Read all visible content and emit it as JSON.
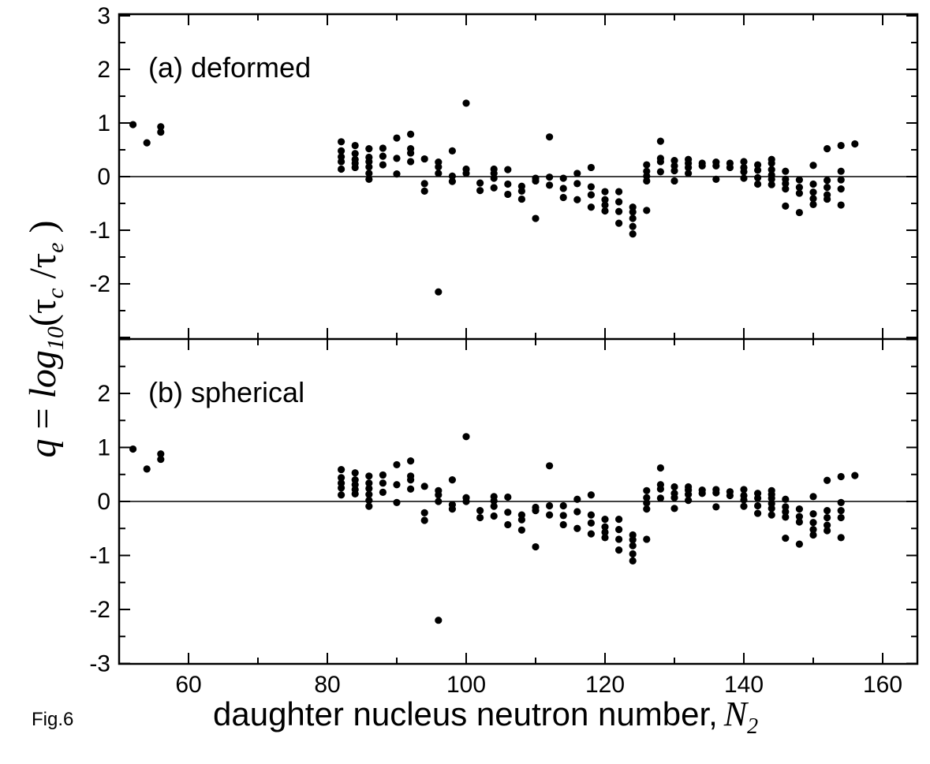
{
  "figure_label": "Fig.6",
  "chart_data": {
    "type": "scatter",
    "xlabel": "daughter nucleus neutron number,",
    "xlabel_symbol": "N",
    "xlabel_subscript": "2",
    "ylabel": {
      "lhs": "q",
      "eq": " = ",
      "log": "log",
      "log_sub": "10",
      "open": "(",
      "tau": "τ",
      "sub_c": "c",
      "slash": " /",
      "sub_e": "e",
      "close": " )"
    },
    "xlim": [
      50,
      165
    ],
    "x_ticks": [
      60,
      80,
      100,
      120,
      140,
      160
    ],
    "zero_line": true,
    "panels": [
      {
        "label": "(a) deformed",
        "ylim": [
          -3,
          3
        ],
        "y_tick_labels": [
          3,
          2,
          1,
          0,
          -1,
          -2
        ],
        "points": [
          [
            52,
            0.97
          ],
          [
            54,
            0.63
          ],
          [
            56,
            0.93
          ],
          [
            56,
            0.83
          ],
          [
            82,
            0.65
          ],
          [
            82,
            0.48
          ],
          [
            82,
            0.37
          ],
          [
            82,
            0.28
          ],
          [
            82,
            0.14
          ],
          [
            84,
            0.58
          ],
          [
            84,
            0.43
          ],
          [
            84,
            0.32
          ],
          [
            84,
            0.25
          ],
          [
            84,
            0.17
          ],
          [
            86,
            0.52
          ],
          [
            86,
            0.36
          ],
          [
            86,
            0.28
          ],
          [
            86,
            0.18
          ],
          [
            86,
            0.06
          ],
          [
            86,
            -0.05
          ],
          [
            88,
            0.53
          ],
          [
            88,
            0.38
          ],
          [
            88,
            0.22
          ],
          [
            90,
            0.72
          ],
          [
            90,
            0.34
          ],
          [
            90,
            0.05
          ],
          [
            92,
            0.79
          ],
          [
            92,
            0.52
          ],
          [
            92,
            0.44
          ],
          [
            92,
            0.28
          ],
          [
            94,
            0.33
          ],
          [
            94,
            -0.13
          ],
          [
            94,
            -0.27
          ],
          [
            96,
            0.27
          ],
          [
            96,
            0.18
          ],
          [
            96,
            0.06
          ],
          [
            96,
            -2.15
          ],
          [
            98,
            0.48
          ],
          [
            98,
            0.01
          ],
          [
            98,
            -0.09
          ],
          [
            100,
            1.37
          ],
          [
            100,
            0.14
          ],
          [
            100,
            0.06
          ],
          [
            102,
            -0.12
          ],
          [
            102,
            -0.26
          ],
          [
            104,
            0.14
          ],
          [
            104,
            0.06
          ],
          [
            104,
            -0.03
          ],
          [
            104,
            -0.21
          ],
          [
            106,
            0.13
          ],
          [
            106,
            -0.14
          ],
          [
            106,
            -0.33
          ],
          [
            108,
            -0.18
          ],
          [
            108,
            -0.27
          ],
          [
            108,
            -0.42
          ],
          [
            110,
            -0.03
          ],
          [
            110,
            -0.08
          ],
          [
            110,
            -0.78
          ],
          [
            112,
            0.74
          ],
          [
            112,
            -0.01
          ],
          [
            112,
            -0.16
          ],
          [
            114,
            -0.03
          ],
          [
            114,
            -0.22
          ],
          [
            114,
            -0.39
          ],
          [
            116,
            0.06
          ],
          [
            116,
            -0.13
          ],
          [
            116,
            -0.43
          ],
          [
            118,
            0.17
          ],
          [
            118,
            -0.19
          ],
          [
            118,
            -0.34
          ],
          [
            118,
            -0.57
          ],
          [
            120,
            -0.28
          ],
          [
            120,
            -0.43
          ],
          [
            120,
            -0.53
          ],
          [
            120,
            -0.64
          ],
          [
            122,
            -0.28
          ],
          [
            122,
            -0.47
          ],
          [
            122,
            -0.65
          ],
          [
            122,
            -0.87
          ],
          [
            124,
            -0.57
          ],
          [
            124,
            -0.66
          ],
          [
            124,
            -0.78
          ],
          [
            124,
            -0.93
          ],
          [
            124,
            -1.07
          ],
          [
            126,
            0.22
          ],
          [
            126,
            0.1
          ],
          [
            126,
            0.01
          ],
          [
            126,
            -0.08
          ],
          [
            126,
            -0.63
          ],
          [
            128,
            0.66
          ],
          [
            128,
            0.34
          ],
          [
            128,
            0.28
          ],
          [
            128,
            0.09
          ],
          [
            130,
            0.3
          ],
          [
            130,
            0.2
          ],
          [
            130,
            0.11
          ],
          [
            130,
            -0.08
          ],
          [
            132,
            0.32
          ],
          [
            132,
            0.25
          ],
          [
            132,
            0.17
          ],
          [
            132,
            0.06
          ],
          [
            134,
            0.25
          ],
          [
            134,
            0.2
          ],
          [
            136,
            0.27
          ],
          [
            136,
            0.2
          ],
          [
            136,
            -0.05
          ],
          [
            138,
            0.25
          ],
          [
            138,
            0.17
          ],
          [
            140,
            0.28
          ],
          [
            140,
            0.17
          ],
          [
            140,
            0.09
          ],
          [
            140,
            -0.03
          ],
          [
            142,
            0.22
          ],
          [
            142,
            0.12
          ],
          [
            142,
            -0.02
          ],
          [
            142,
            -0.14
          ],
          [
            144,
            0.32
          ],
          [
            144,
            0.25
          ],
          [
            144,
            0.13
          ],
          [
            144,
            0.03
          ],
          [
            144,
            -0.05
          ],
          [
            144,
            -0.15
          ],
          [
            146,
            0.1
          ],
          [
            146,
            -0.05
          ],
          [
            146,
            -0.13
          ],
          [
            146,
            -0.23
          ],
          [
            146,
            -0.55
          ],
          [
            148,
            -0.06
          ],
          [
            148,
            -0.2
          ],
          [
            148,
            -0.31
          ],
          [
            148,
            -0.67
          ],
          [
            150,
            0.21
          ],
          [
            150,
            -0.14
          ],
          [
            150,
            -0.29
          ],
          [
            150,
            -0.41
          ],
          [
            150,
            -0.52
          ],
          [
            152,
            0.52
          ],
          [
            152,
            -0.07
          ],
          [
            152,
            -0.2
          ],
          [
            152,
            -0.34
          ],
          [
            152,
            -0.42
          ],
          [
            154,
            0.58
          ],
          [
            154,
            0.1
          ],
          [
            154,
            -0.06
          ],
          [
            154,
            -0.23
          ],
          [
            154,
            -0.53
          ],
          [
            156,
            0.61
          ]
        ]
      },
      {
        "label": "(b) spherical",
        "ylim": [
          -3,
          3
        ],
        "y_tick_labels": [
          2,
          1,
          0,
          -1,
          -2,
          -3
        ],
        "points": [
          [
            52,
            0.97
          ],
          [
            54,
            0.6
          ],
          [
            56,
            0.88
          ],
          [
            56,
            0.78
          ],
          [
            82,
            0.59
          ],
          [
            82,
            0.44
          ],
          [
            82,
            0.34
          ],
          [
            82,
            0.25
          ],
          [
            82,
            0.12
          ],
          [
            84,
            0.53
          ],
          [
            84,
            0.4
          ],
          [
            84,
            0.31
          ],
          [
            84,
            0.22
          ],
          [
            84,
            0.14
          ],
          [
            86,
            0.47
          ],
          [
            86,
            0.34
          ],
          [
            86,
            0.24
          ],
          [
            86,
            0.13
          ],
          [
            86,
            0.02
          ],
          [
            86,
            -0.09
          ],
          [
            88,
            0.49
          ],
          [
            88,
            0.34
          ],
          [
            88,
            0.17
          ],
          [
            90,
            0.68
          ],
          [
            90,
            0.31
          ],
          [
            90,
            -0.02
          ],
          [
            92,
            0.75
          ],
          [
            92,
            0.47
          ],
          [
            92,
            0.4
          ],
          [
            92,
            0.23
          ],
          [
            94,
            0.28
          ],
          [
            94,
            -0.21
          ],
          [
            94,
            -0.35
          ],
          [
            96,
            0.2
          ],
          [
            96,
            0.12
          ],
          [
            96,
            0.0
          ],
          [
            96,
            -2.2
          ],
          [
            98,
            0.4
          ],
          [
            98,
            -0.06
          ],
          [
            98,
            -0.14
          ],
          [
            100,
            1.2
          ],
          [
            100,
            0.07
          ],
          [
            100,
            0.0
          ],
          [
            102,
            -0.17
          ],
          [
            102,
            -0.3
          ],
          [
            104,
            0.09
          ],
          [
            104,
            0.01
          ],
          [
            104,
            -0.09
          ],
          [
            104,
            -0.27
          ],
          [
            106,
            0.08
          ],
          [
            106,
            -0.2
          ],
          [
            106,
            -0.43
          ],
          [
            108,
            -0.25
          ],
          [
            108,
            -0.34
          ],
          [
            108,
            -0.53
          ],
          [
            110,
            -0.11
          ],
          [
            110,
            -0.17
          ],
          [
            110,
            -0.84
          ],
          [
            112,
            0.66
          ],
          [
            112,
            -0.08
          ],
          [
            112,
            -0.25
          ],
          [
            114,
            -0.08
          ],
          [
            114,
            -0.26
          ],
          [
            114,
            -0.43
          ],
          [
            116,
            0.04
          ],
          [
            116,
            -0.19
          ],
          [
            116,
            -0.5
          ],
          [
            118,
            0.12
          ],
          [
            118,
            -0.25
          ],
          [
            118,
            -0.4
          ],
          [
            118,
            -0.6
          ],
          [
            120,
            -0.33
          ],
          [
            120,
            -0.47
          ],
          [
            120,
            -0.57
          ],
          [
            120,
            -0.67
          ],
          [
            122,
            -0.33
          ],
          [
            122,
            -0.52
          ],
          [
            122,
            -0.7
          ],
          [
            122,
            -0.9
          ],
          [
            124,
            -0.62
          ],
          [
            124,
            -0.71
          ],
          [
            124,
            -0.82
          ],
          [
            124,
            -0.97
          ],
          [
            124,
            -1.1
          ],
          [
            126,
            0.2
          ],
          [
            126,
            0.07
          ],
          [
            126,
            -0.03
          ],
          [
            126,
            -0.14
          ],
          [
            126,
            -0.7
          ],
          [
            128,
            0.62
          ],
          [
            128,
            0.31
          ],
          [
            128,
            0.23
          ],
          [
            128,
            0.06
          ],
          [
            130,
            0.27
          ],
          [
            130,
            0.15
          ],
          [
            130,
            0.07
          ],
          [
            130,
            -0.13
          ],
          [
            132,
            0.27
          ],
          [
            132,
            0.21
          ],
          [
            132,
            0.13
          ],
          [
            132,
            0.02
          ],
          [
            134,
            0.21
          ],
          [
            134,
            0.15
          ],
          [
            136,
            0.22
          ],
          [
            136,
            0.16
          ],
          [
            136,
            -0.1
          ],
          [
            138,
            0.18
          ],
          [
            138,
            0.11
          ],
          [
            140,
            0.22
          ],
          [
            140,
            0.11
          ],
          [
            140,
            0.03
          ],
          [
            140,
            -0.09
          ],
          [
            142,
            0.15
          ],
          [
            142,
            0.06
          ],
          [
            142,
            -0.08
          ],
          [
            142,
            -0.22
          ],
          [
            144,
            0.2
          ],
          [
            144,
            0.13
          ],
          [
            144,
            0.06
          ],
          [
            144,
            -0.04
          ],
          [
            144,
            -0.13
          ],
          [
            144,
            -0.25
          ],
          [
            146,
            0.04
          ],
          [
            146,
            -0.1
          ],
          [
            146,
            -0.19
          ],
          [
            146,
            -0.29
          ],
          [
            146,
            -0.68
          ],
          [
            148,
            -0.14
          ],
          [
            148,
            -0.28
          ],
          [
            148,
            -0.38
          ],
          [
            148,
            -0.79
          ],
          [
            150,
            0.09
          ],
          [
            150,
            -0.23
          ],
          [
            150,
            -0.39
          ],
          [
            150,
            -0.52
          ],
          [
            150,
            -0.62
          ],
          [
            152,
            0.39
          ],
          [
            152,
            -0.17
          ],
          [
            152,
            -0.3
          ],
          [
            152,
            -0.44
          ],
          [
            152,
            -0.54
          ],
          [
            154,
            0.46
          ],
          [
            154,
            -0.02
          ],
          [
            154,
            -0.17
          ],
          [
            154,
            -0.3
          ],
          [
            154,
            -0.67
          ],
          [
            156,
            0.48
          ]
        ]
      }
    ]
  }
}
